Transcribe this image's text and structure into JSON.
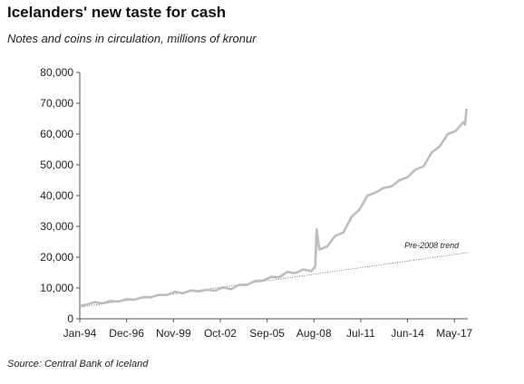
{
  "title": "Icelanders' new taste for cash",
  "subtitle": "Notes and coins in circulation, millions of kronur",
  "source": "Source: Central Bank of Iceland",
  "chart_data": {
    "type": "line",
    "xlabel": "",
    "ylabel": "",
    "ylim": [
      0,
      80000
    ],
    "yticks": [
      0,
      10000,
      20000,
      30000,
      40000,
      50000,
      60000,
      70000,
      80000
    ],
    "ytick_labels": [
      "0",
      "10,000",
      "20,000",
      "30,000",
      "40,000",
      "50,000",
      "60,000",
      "70,000",
      "80,000"
    ],
    "xlim": [
      "1994-01",
      "2018-03"
    ],
    "xticks": [
      "1994-01",
      "1996-12",
      "1999-11",
      "2002-10",
      "2005-09",
      "2008-08",
      "2011-07",
      "2014-06",
      "2017-05"
    ],
    "xtick_labels": [
      "Jan-94",
      "Dec-96",
      "Nov-99",
      "Oct-02",
      "Sep-05",
      "Aug-08",
      "Jul-11",
      "Jun-14",
      "May-17"
    ],
    "grid": false,
    "legend": "none",
    "series": [
      {
        "name": "",
        "color": "#bdbdbd",
        "points": [
          [
            "1994-01",
            4200
          ],
          [
            "1994-07",
            4700
          ],
          [
            "1994-12",
            5400
          ],
          [
            "1995-06",
            5000
          ],
          [
            "1995-12",
            5800
          ],
          [
            "1996-06",
            5600
          ],
          [
            "1996-12",
            6400
          ],
          [
            "1997-06",
            6200
          ],
          [
            "1997-12",
            7000
          ],
          [
            "1998-06",
            7000
          ],
          [
            "1998-12",
            7800
          ],
          [
            "1999-06",
            7700
          ],
          [
            "1999-12",
            8800
          ],
          [
            "2000-06",
            8300
          ],
          [
            "2000-12",
            9200
          ],
          [
            "2001-06",
            8900
          ],
          [
            "2001-12",
            9400
          ],
          [
            "2002-06",
            9100
          ],
          [
            "2002-12",
            10200
          ],
          [
            "2003-06",
            9600
          ],
          [
            "2003-12",
            11000
          ],
          [
            "2004-06",
            11000
          ],
          [
            "2004-12",
            12300
          ],
          [
            "2005-06",
            12400
          ],
          [
            "2005-12",
            13600
          ],
          [
            "2006-06",
            13500
          ],
          [
            "2006-12",
            15200
          ],
          [
            "2007-06",
            14800
          ],
          [
            "2007-12",
            16000
          ],
          [
            "2008-06",
            15500
          ],
          [
            "2008-09",
            17000
          ],
          [
            "2008-10",
            29000
          ],
          [
            "2008-11",
            26000
          ],
          [
            "2008-12",
            22500
          ],
          [
            "2009-06",
            23500
          ],
          [
            "2009-12",
            27000
          ],
          [
            "2010-06",
            28000
          ],
          [
            "2010-12",
            33000
          ],
          [
            "2011-06",
            35500
          ],
          [
            "2011-12",
            40000
          ],
          [
            "2012-06",
            41000
          ],
          [
            "2012-12",
            42500
          ],
          [
            "2013-06",
            43000
          ],
          [
            "2013-12",
            45000
          ],
          [
            "2014-06",
            46000
          ],
          [
            "2014-12",
            48500
          ],
          [
            "2015-06",
            49500
          ],
          [
            "2015-12",
            54000
          ],
          [
            "2016-06",
            56000
          ],
          [
            "2016-12",
            60000
          ],
          [
            "2017-06",
            61000
          ],
          [
            "2017-12",
            64000
          ],
          [
            "2018-01",
            63000
          ],
          [
            "2018-02",
            68000
          ]
        ]
      }
    ],
    "annotations": [
      {
        "text": "Pre-2008 trend",
        "style": "dotted",
        "line_start": [
          "1994-01",
          3800
        ],
        "line_end": [
          "2018-03",
          21500
        ],
        "text_anchor": [
          "2015-12",
          23000
        ]
      }
    ]
  }
}
